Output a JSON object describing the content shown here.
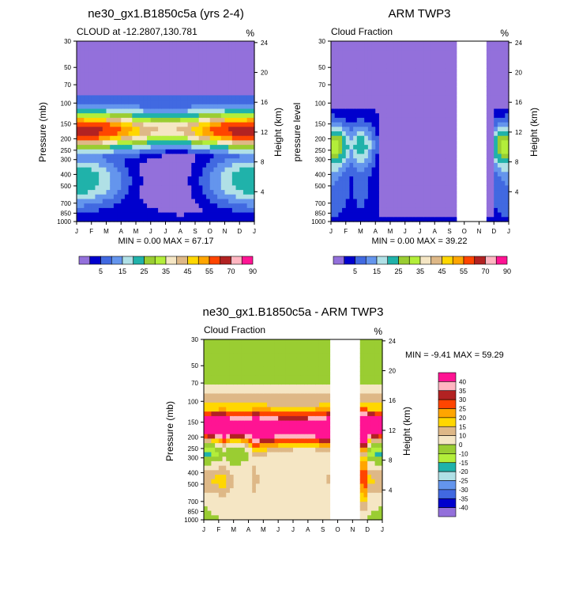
{
  "months": [
    "J",
    "F",
    "M",
    "A",
    "M",
    "J",
    "J",
    "A",
    "S",
    "O",
    "N",
    "D",
    "J"
  ],
  "pressure_ticks": [
    "30",
    "50",
    "70",
    "100",
    "150",
    "200",
    "250",
    "300",
    "400",
    "500",
    "700",
    "850",
    "1000"
  ],
  "pressure_values": [
    30,
    50,
    70,
    100,
    150,
    200,
    250,
    300,
    400,
    500,
    700,
    850,
    1000
  ],
  "height_ticks": [
    "24",
    "20",
    "16",
    "12",
    "8",
    "4"
  ],
  "height_values": [
    24,
    20,
    16,
    12,
    8,
    4
  ],
  "chart_data": [
    {
      "type": "heatmap",
      "title": "ne30_gx1.B1850c5a (yrs 2-4)",
      "subtitle_left": "CLOUD at -12.2807,130.781",
      "units": "%",
      "ylabel": "Pressure (mb)",
      "ylabel_right": "Height (km)",
      "min_max": "MIN =   0.00 MAX =  67.17",
      "x_range": [
        0,
        12
      ],
      "y_range": [
        1000,
        30
      ],
      "missing_months": [],
      "field": "model",
      "levels_label": [
        "5",
        "15",
        "25",
        "35",
        "45",
        "55",
        "70",
        "90"
      ],
      "colors": [
        "#9370db",
        "#0000cd",
        "#4169e1",
        "#6495ed",
        "#b0e0e6",
        "#20b2aa",
        "#9acd32",
        "#b3ee3a",
        "#f5e6c4",
        "#deb887",
        "#ffd700",
        "#ffa500",
        "#ff4500",
        "#b22222",
        "#ffb6c1",
        "#ff1493"
      ]
    },
    {
      "type": "heatmap",
      "title": "ARM TWP3",
      "subtitle_left": "Cloud Fraction",
      "units": "%",
      "ylabel": "pressure level",
      "ylabel_right": "Height (km)",
      "min_max": "MIN =   0.00 MAX =  39.22",
      "x_range": [
        0,
        12
      ],
      "y_range": [
        1000,
        30
      ],
      "missing_months": [
        8.5,
        10.5
      ],
      "field": "obs",
      "levels_label": [
        "5",
        "15",
        "25",
        "35",
        "45",
        "55",
        "70",
        "90"
      ],
      "colors": [
        "#9370db",
        "#0000cd",
        "#4169e1",
        "#6495ed",
        "#b0e0e6",
        "#20b2aa",
        "#9acd32",
        "#b3ee3a",
        "#f5e6c4",
        "#deb887",
        "#ffd700",
        "#ffa500",
        "#ff4500",
        "#b22222",
        "#ffb6c1",
        "#ff1493"
      ]
    },
    {
      "type": "heatmap",
      "title": "ne30_gx1.B1850c5a - ARM TWP3",
      "subtitle_left": "Cloud Fraction",
      "units": "%",
      "ylabel": "Pressure (mb)",
      "ylabel_right": "Height (km)",
      "min_max": "MIN =  -9.41 MAX =  59.29",
      "x_range": [
        0,
        12
      ],
      "y_range": [
        1000,
        30
      ],
      "missing_months": [
        8.5,
        10.5
      ],
      "field": "diff",
      "levels_label": [
        "40",
        "35",
        "30",
        "25",
        "20",
        "15",
        "10",
        "0",
        "-10",
        "-15",
        "-20",
        "-25",
        "-30",
        "-35",
        "-40"
      ],
      "colors": [
        "#ff1493",
        "#ffb6c1",
        "#b22222",
        "#ff4500",
        "#ffa500",
        "#ffd700",
        "#deb887",
        "#f5e6c4",
        "#9acd32",
        "#b3ee3a",
        "#20b2aa",
        "#b0e0e6",
        "#6495ed",
        "#4169e1",
        "#0000cd",
        "#9370db"
      ]
    }
  ]
}
